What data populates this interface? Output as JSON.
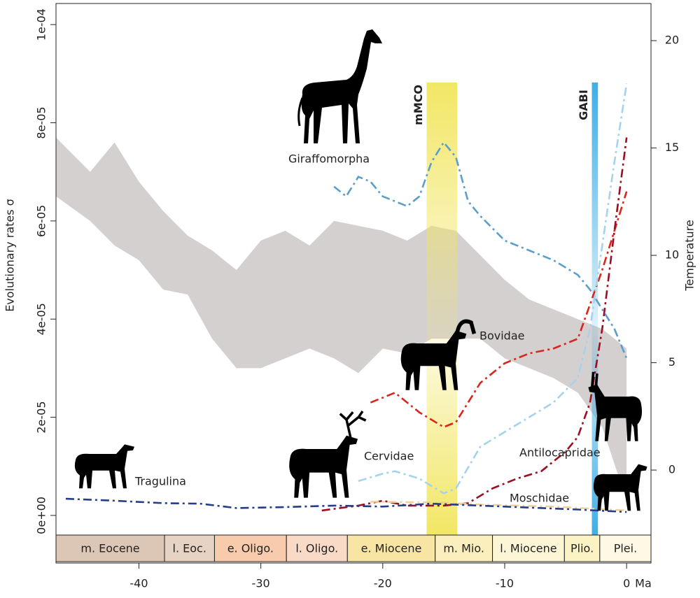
{
  "chart_data": {
    "type": "line",
    "ylabel": "Evolutionary rates σ",
    "y2label": "Temperature",
    "xlabel": "Ma",
    "xlim": [
      -46.8,
      2.0
    ],
    "xticks": [
      -40,
      -30,
      -20,
      -10,
      0
    ],
    "ylim": [
      -9.7e-06,
      0.0001043
    ],
    "yticks": [
      {
        "value": 0,
        "label": "0e+00"
      },
      {
        "value": 2e-05,
        "label": "2e-05"
      },
      {
        "value": 4e-05,
        "label": "4e-05"
      },
      {
        "value": 6e-05,
        "label": "6e-05"
      },
      {
        "value": 8e-05,
        "label": "8e-05"
      },
      {
        "value": 0.0001,
        "label": "1e-04"
      }
    ],
    "y2lim": [
      -4.33,
      21.73
    ],
    "y2ticks": [
      0,
      5,
      10,
      15,
      20
    ],
    "cloud": {
      "color": "#d0cbcb",
      "x": [
        -46.8,
        -44,
        -42,
        -40,
        -38,
        -36,
        -34,
        -32,
        -30,
        -28,
        -26,
        -24,
        -22,
        -20,
        -18,
        -16,
        -14,
        -12,
        -10,
        -8,
        -6,
        -4,
        -2,
        0
      ],
      "upper": [
        7.7e-05,
        7e-05,
        7.6e-05,
        6.8e-05,
        6.2e-05,
        5.7e-05,
        5.4e-05,
        5e-05,
        5.6e-05,
        5.8e-05,
        5.5e-05,
        6e-05,
        5.9e-05,
        5.8e-05,
        5.6e-05,
        5.9e-05,
        5.8e-05,
        5.3e-05,
        4.8e-05,
        4.4e-05,
        4.2e-05,
        4e-05,
        3.8e-05,
        3.4e-05
      ],
      "lower": [
        6.5e-05,
        6e-05,
        5.5e-05,
        5.2e-05,
        4.6e-05,
        4.5e-05,
        3.6e-05,
        3e-05,
        3e-05,
        3.2e-05,
        3.4e-05,
        3.2e-05,
        2.9e-05,
        3.4e-05,
        3.3e-05,
        3.6e-05,
        3.6e-05,
        3.6e-05,
        3.2e-05,
        3e-05,
        2.8e-05,
        2.5e-05,
        1.8e-05,
        3e-06
      ]
    },
    "series": [
      {
        "name": "Giraffomorpha",
        "color": "#5a9fcb",
        "x": [
          -24,
          -23,
          -22,
          -21,
          -20,
          -18,
          -17,
          -16,
          -15,
          -14,
          -13,
          -12,
          -10,
          -8,
          -6,
          -4,
          -3,
          -2,
          -1,
          0
        ],
        "values": [
          6.7e-05,
          6.5e-05,
          6.9e-05,
          6.8e-05,
          6.5e-05,
          6.3e-05,
          6.5e-05,
          7.2e-05,
          7.6e-05,
          7.3e-05,
          6.4e-05,
          6.1e-05,
          5.6e-05,
          5.4e-05,
          5.2e-05,
          4.9e-05,
          4.6e-05,
          4.2e-05,
          3.8e-05,
          3.2e-05
        ]
      },
      {
        "name": "Bovidae",
        "color": "#d8261c",
        "x": [
          -21,
          -19,
          -17,
          -15,
          -14,
          -12,
          -10,
          -8,
          -6,
          -4,
          -3,
          -2,
          -1,
          0
        ],
        "values": [
          2.3e-05,
          2.5e-05,
          2.1e-05,
          1.8e-05,
          1.9e-05,
          2.7e-05,
          3.1e-05,
          3.3e-05,
          3.4e-05,
          3.6e-05,
          4.3e-05,
          5e-05,
          5.8e-05,
          6.6e-05
        ]
      },
      {
        "name": "Cervidae",
        "color": "#a6d3ea",
        "x": [
          -22,
          -20,
          -19,
          -17,
          -15,
          -14,
          -12,
          -10,
          -8,
          -6,
          -4,
          -3,
          -2,
          -1,
          0
        ],
        "values": [
          7e-06,
          8.5e-06,
          9e-06,
          7.5e-06,
          4.5e-06,
          5.5e-06,
          1.4e-05,
          1.7e-05,
          2e-05,
          2.3e-05,
          2.8e-05,
          3.8e-05,
          5.5e-05,
          7.2e-05,
          8.8e-05
        ]
      },
      {
        "name": "Antilocapridae",
        "color": "#9a0f22",
        "x": [
          -25,
          -22,
          -20,
          -18,
          -15,
          -13,
          -11,
          -9,
          -7,
          -5,
          -4,
          -3,
          -2,
          -1,
          0
        ],
        "values": [
          1e-06,
          2e-06,
          3e-06,
          2e-06,
          2e-06,
          2.5e-06,
          5.5e-06,
          7.5e-06,
          9e-06,
          1.3e-05,
          1.6e-05,
          2.3e-05,
          3.8e-05,
          5.8e-05,
          7.7e-05
        ]
      },
      {
        "name": "Moschidae",
        "color": "#efd29a",
        "x": [
          -21,
          -18,
          -15,
          -12,
          -9,
          -6,
          -3,
          0
        ],
        "values": [
          2.8e-06,
          2.7e-06,
          2.6e-06,
          2.2e-06,
          2e-06,
          1.8e-06,
          1.4e-06,
          1e-06
        ]
      },
      {
        "name": "Tragulina",
        "color": "#263d8a",
        "x": [
          -46,
          -42,
          -38,
          -35,
          -32,
          -28,
          -24,
          -20,
          -16,
          -12,
          -8,
          -4,
          0
        ],
        "values": [
          3.4e-06,
          3e-06,
          2.5e-06,
          2.4e-06,
          1.5e-06,
          1.7e-06,
          2e-06,
          1.8e-06,
          2.4e-06,
          2e-06,
          1.6e-06,
          1.2e-06,
          7e-07
        ]
      }
    ],
    "bands": [
      {
        "label": "mMCO",
        "start": -16.4,
        "end": -13.9,
        "color": "#f1e55c"
      },
      {
        "label": "GABI",
        "start": -2.85,
        "end": -2.35,
        "color": "#36aae4"
      }
    ],
    "epochs": [
      {
        "label": "m. Eocene",
        "start": -46.8,
        "end": -37.9,
        "color": "#dcc6b6"
      },
      {
        "label": "l. Eoc.",
        "start": -37.9,
        "end": -33.8,
        "color": "#e6d3c4"
      },
      {
        "label": "e. Oligo.",
        "start": -33.8,
        "end": -27.9,
        "color": "#f7cbab"
      },
      {
        "label": "l. Oligo.",
        "start": -27.9,
        "end": -22.9,
        "color": "#f9dac6"
      },
      {
        "label": "e. Miocene",
        "start": -22.9,
        "end": -15.7,
        "color": "#f8e5a4"
      },
      {
        "label": "m. Mio.",
        "start": -15.7,
        "end": -11.0,
        "color": "#fbefbd"
      },
      {
        "label": "l. Miocene",
        "start": -11.0,
        "end": -5.1,
        "color": "#fdf6d6"
      },
      {
        "label": "Plio.",
        "start": -5.1,
        "end": -2.2,
        "color": "#fcf3c4"
      },
      {
        "label": "Plei.",
        "start": -2.2,
        "end": 2.0,
        "color": "#fff8e4"
      }
    ]
  }
}
